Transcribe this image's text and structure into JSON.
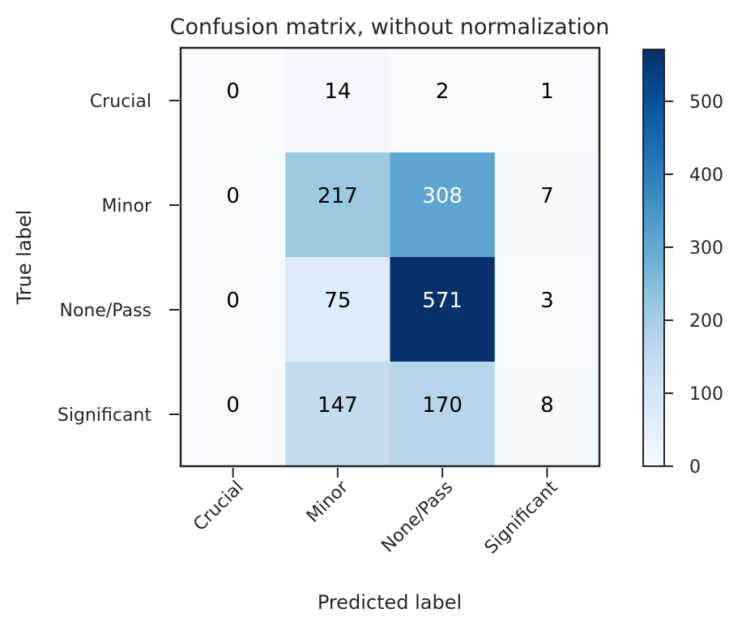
{
  "chart_data": {
    "type": "heatmap",
    "title": "Confusion matrix, without normalization",
    "xlabel": "Predicted label",
    "ylabel": "True label",
    "x_categories": [
      "Crucial",
      "Minor",
      "None/Pass",
      "Significant"
    ],
    "y_categories": [
      "Crucial",
      "Minor",
      "None/Pass",
      "Significant"
    ],
    "values": [
      [
        0,
        14,
        2,
        1
      ],
      [
        0,
        217,
        308,
        7
      ],
      [
        0,
        75,
        571,
        3
      ],
      [
        0,
        147,
        170,
        8
      ]
    ],
    "colormap": "Blues",
    "colorbar": {
      "min": 0,
      "max": 571,
      "ticks": [
        0,
        100,
        200,
        300,
        400,
        500
      ],
      "tick_labels": [
        "0",
        "100",
        "200",
        "300",
        "400",
        "500"
      ]
    },
    "colors": {
      "low": "#f7fbff",
      "high": "#08306b",
      "text_dark": "#000000",
      "text_light": "#ffffff",
      "frame": "#262626"
    }
  }
}
